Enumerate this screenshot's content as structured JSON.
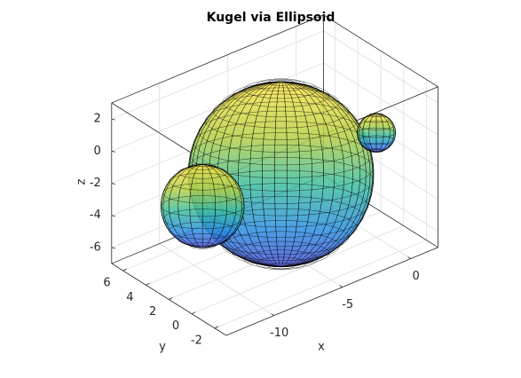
{
  "chart_data": {
    "type": "sphere3d",
    "title": "Kugel via Ellipsoid",
    "xlabel": "x",
    "ylabel": "y",
    "zlabel": "z",
    "xlim": [
      -13.5,
      2
    ],
    "ylim": [
      -3,
      7
    ],
    "zlim": [
      -7,
      3
    ],
    "xticks": [
      -10,
      -5,
      0
    ],
    "yticks": [
      -2,
      0,
      2,
      4,
      6
    ],
    "zticks": [
      -6,
      -4,
      -2,
      0,
      2
    ],
    "grid": true,
    "spheres": [
      {
        "center": [
          -5.3,
          2,
          -2.1
        ],
        "radius": 5.8
      },
      {
        "center": [
          0,
          0,
          -0.5
        ],
        "radius": 1.2
      },
      {
        "center": [
          -10.2,
          3,
          -2.8
        ],
        "radius": 2.6
      }
    ]
  }
}
